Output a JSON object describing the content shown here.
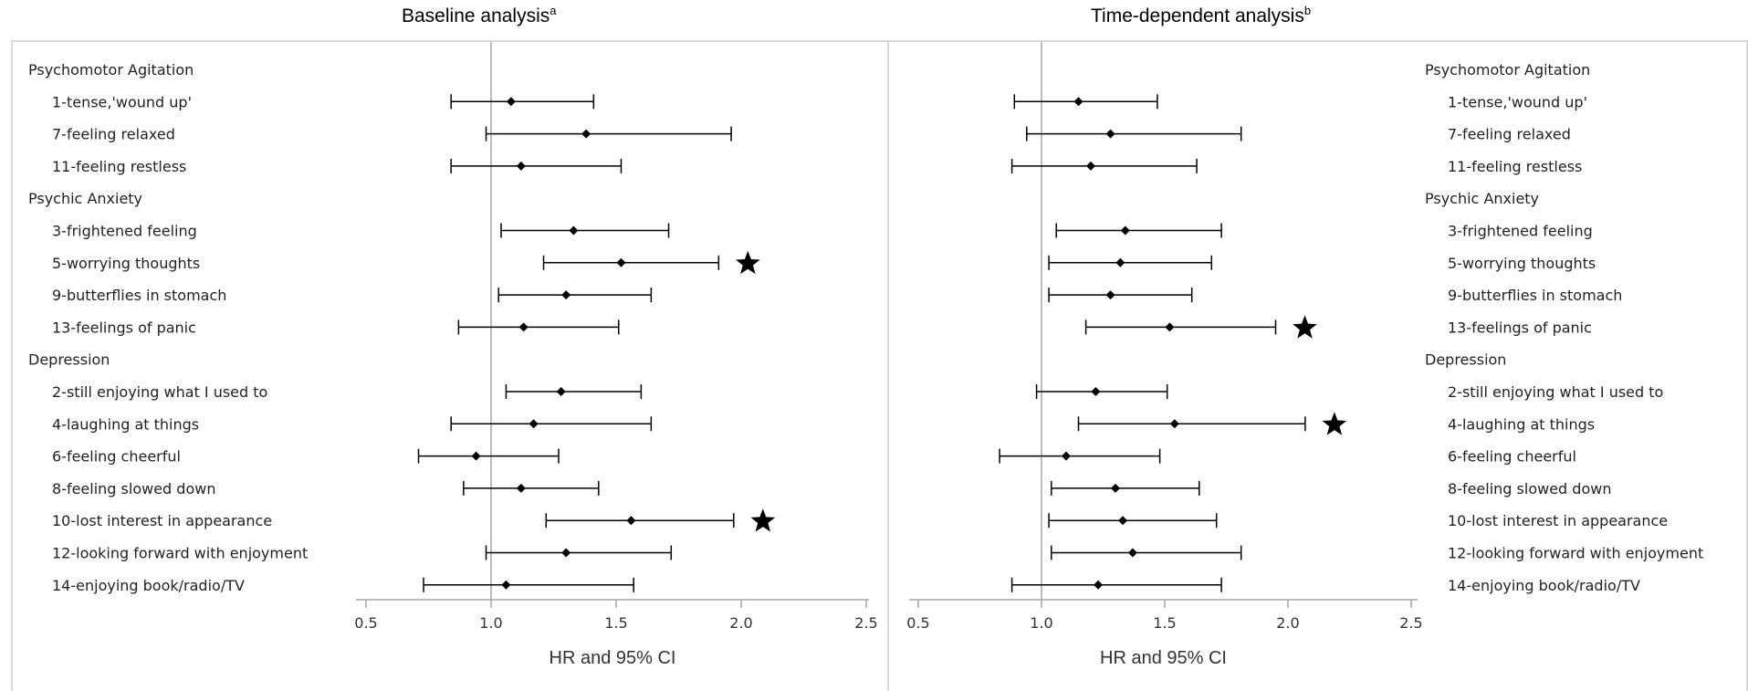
{
  "titles": {
    "left": "Baseline analysis",
    "left_sup": "a",
    "right": "Time-dependent analysis",
    "right_sup": "b"
  },
  "chart_data": [
    {
      "type": "forest",
      "title": "Baseline analysis",
      "xlabel": "HR and 95% CI",
      "xlim": [
        0.45,
        2.55
      ],
      "xticks": [
        "0.5",
        "1.0",
        "1.5",
        "2.0",
        "2.5"
      ],
      "reference_line": 1.0,
      "grid": false,
      "rows": [
        {
          "label": "Psychomotor Agitation",
          "header": true
        },
        {
          "label": "1-tense,'wound up'",
          "hr": 1.08,
          "lo": 0.84,
          "hi": 1.41
        },
        {
          "label": "7-feeling relaxed",
          "hr": 1.38,
          "lo": 0.98,
          "hi": 1.96
        },
        {
          "label": "11-feeling restless",
          "hr": 1.12,
          "lo": 0.84,
          "hi": 1.52
        },
        {
          "label": "Psychic Anxiety",
          "header": true
        },
        {
          "label": "3-frightened feeling",
          "hr": 1.33,
          "lo": 1.04,
          "hi": 1.71
        },
        {
          "label": "5-worrying thoughts",
          "hr": 1.52,
          "lo": 1.21,
          "hi": 1.91,
          "star": true
        },
        {
          "label": "9-butterflies in stomach",
          "hr": 1.3,
          "lo": 1.03,
          "hi": 1.64
        },
        {
          "label": "13-feelings of panic",
          "hr": 1.13,
          "lo": 0.87,
          "hi": 1.51
        },
        {
          "label": "Depression",
          "header": true
        },
        {
          "label": "2-still enjoying what I used to",
          "hr": 1.28,
          "lo": 1.06,
          "hi": 1.6
        },
        {
          "label": "4-laughing at things",
          "hr": 1.17,
          "lo": 0.84,
          "hi": 1.64
        },
        {
          "label": "6-feeling cheerful",
          "hr": 0.94,
          "lo": 0.71,
          "hi": 1.27
        },
        {
          "label": "8-feeling slowed down",
          "hr": 1.12,
          "lo": 0.89,
          "hi": 1.43
        },
        {
          "label": "10-lost interest in appearance",
          "hr": 1.56,
          "lo": 1.22,
          "hi": 1.97,
          "star": true
        },
        {
          "label": "12-looking forward with enjoyment",
          "hr": 1.3,
          "lo": 0.98,
          "hi": 1.72
        },
        {
          "label": "14-enjoying book/radio/TV",
          "hr": 1.06,
          "lo": 0.73,
          "hi": 1.57
        }
      ]
    },
    {
      "type": "forest",
      "title": "Time-dependent analysis",
      "xlabel": "HR and 95% CI",
      "xlim": [
        0.45,
        2.55
      ],
      "xticks": [
        "0.5",
        "1.0",
        "1.5",
        "2.0",
        "2.5"
      ],
      "reference_line": 1.0,
      "grid": false,
      "rows": [
        {
          "label": "Psychomotor Agitation",
          "header": true
        },
        {
          "label": "1-tense,'wound up'",
          "hr": 1.15,
          "lo": 0.89,
          "hi": 1.47
        },
        {
          "label": "7-feeling relaxed",
          "hr": 1.28,
          "lo": 0.94,
          "hi": 1.81
        },
        {
          "label": "11-feeling restless",
          "hr": 1.2,
          "lo": 0.88,
          "hi": 1.63
        },
        {
          "label": "Psychic Anxiety",
          "header": true
        },
        {
          "label": "3-frightened feeling",
          "hr": 1.34,
          "lo": 1.06,
          "hi": 1.73
        },
        {
          "label": "5-worrying thoughts",
          "hr": 1.32,
          "lo": 1.03,
          "hi": 1.69
        },
        {
          "label": "9-butterflies in stomach",
          "hr": 1.28,
          "lo": 1.03,
          "hi": 1.61
        },
        {
          "label": "13-feelings of panic",
          "hr": 1.52,
          "lo": 1.18,
          "hi": 1.95,
          "star": true
        },
        {
          "label": "Depression",
          "header": true
        },
        {
          "label": "2-still enjoying what I used to",
          "hr": 1.22,
          "lo": 0.98,
          "hi": 1.51
        },
        {
          "label": "4-laughing at things",
          "hr": 1.54,
          "lo": 1.15,
          "hi": 2.07,
          "star": true
        },
        {
          "label": "6-feeling cheerful",
          "hr": 1.1,
          "lo": 0.83,
          "hi": 1.48
        },
        {
          "label": "8-feeling slowed down",
          "hr": 1.3,
          "lo": 1.04,
          "hi": 1.64
        },
        {
          "label": "10-lost interest in appearance",
          "hr": 1.33,
          "lo": 1.03,
          "hi": 1.71
        },
        {
          "label": "12-looking forward with enjoyment",
          "hr": 1.37,
          "lo": 1.04,
          "hi": 1.81
        },
        {
          "label": "14-enjoying book/radio/TV",
          "hr": 1.23,
          "lo": 0.88,
          "hi": 1.73
        }
      ]
    }
  ]
}
